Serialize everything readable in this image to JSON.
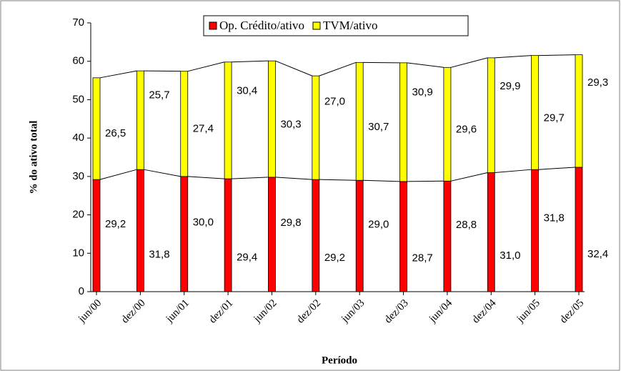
{
  "chart_data": {
    "type": "bar",
    "stacked": true,
    "x_label": "Período",
    "y_label": "% do ativo total",
    "categories": [
      "jun/00",
      "dez/00",
      "jun/01",
      "dez/01",
      "jun/02",
      "dez/02",
      "jun/03",
      "dez/03",
      "jun/04",
      "dez/04",
      "jun/05",
      "dez/05"
    ],
    "series": [
      {
        "name": "Op. Crédito/ativo",
        "color": "#ff0000",
        "values": [
          29.2,
          31.8,
          30.0,
          29.4,
          29.8,
          29.2,
          29.0,
          28.7,
          28.8,
          31.0,
          31.8,
          32.4
        ],
        "value_labels": [
          "29,2",
          "31,8",
          "30,0",
          "29,4",
          "29,8",
          "29,2",
          "29,0",
          "28,7",
          "28,8",
          "31,0",
          "31,8",
          "32,4"
        ]
      },
      {
        "name": "TVM/ativo",
        "color": "#ffff00",
        "values": [
          26.5,
          25.7,
          27.4,
          30.4,
          30.3,
          27.0,
          30.7,
          30.9,
          29.6,
          29.9,
          29.7,
          29.3
        ],
        "value_labels": [
          "26,5",
          "25,7",
          "27,4",
          "30,4",
          "30,3",
          "27,0",
          "30,7",
          "30,9",
          "29,6",
          "29,9",
          "29,7",
          "29,3"
        ]
      }
    ],
    "ylim": [
      0,
      70
    ],
    "yticks": [
      0,
      10,
      20,
      30,
      40,
      50,
      60,
      70
    ],
    "legend": "top"
  }
}
